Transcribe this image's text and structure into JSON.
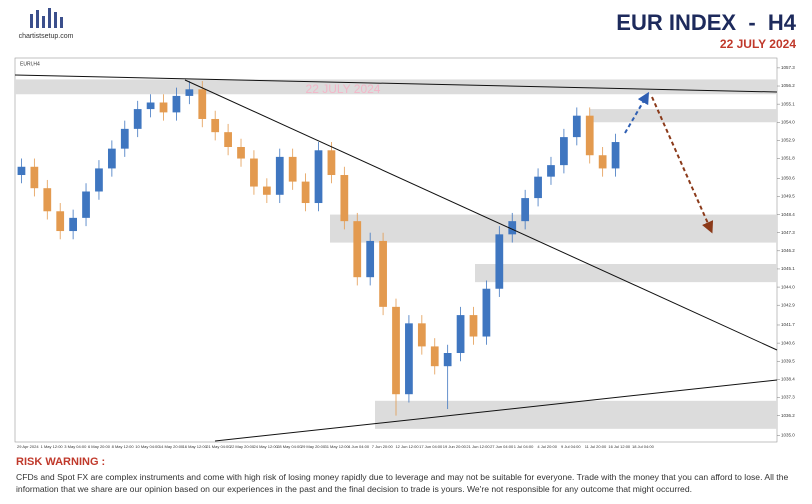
{
  "header": {
    "logo_text": "chartistsetup.com",
    "title": "EUR INDEX  -  H4",
    "date": "22 JULY 2024"
  },
  "chart_data": {
    "type": "candlestick",
    "symbol": "EURI,H4",
    "watermark": "22 JULY 2024",
    "up_color": "#3f76c0",
    "down_color": "#e39a4f",
    "open": [
      1050.8,
      1051.3,
      1050.0,
      1048.6,
      1047.4,
      1048.2,
      1049.8,
      1051.2,
      1052.4,
      1053.6,
      1054.8,
      1055.2,
      1054.6,
      1055.6,
      1056.0,
      1054.2,
      1053.4,
      1052.5,
      1051.8,
      1050.1,
      1049.6,
      1051.9,
      1050.4,
      1049.1,
      1052.3,
      1050.8,
      1048.0,
      1044.6,
      1046.8,
      1042.8,
      1037.5,
      1041.8,
      1040.4,
      1039.2,
      1040.0,
      1042.3,
      1041.0,
      1043.9,
      1047.2,
      1048.0,
      1049.4,
      1050.7,
      1051.4,
      1053.1,
      1054.4,
      1052.0,
      1051.2
    ],
    "high": [
      1051.8,
      1051.8,
      1050.5,
      1049.1,
      1048.7,
      1050.3,
      1051.7,
      1052.9,
      1054.1,
      1055.3,
      1055.7,
      1055.7,
      1056.1,
      1056.5,
      1056.5,
      1054.7,
      1053.9,
      1053.0,
      1052.3,
      1050.6,
      1052.4,
      1052.4,
      1050.9,
      1052.8,
      1052.8,
      1051.3,
      1048.5,
      1047.3,
      1047.3,
      1043.3,
      1042.3,
      1042.3,
      1040.9,
      1040.5,
      1042.8,
      1042.8,
      1044.4,
      1047.7,
      1048.5,
      1049.9,
      1051.2,
      1051.9,
      1053.6,
      1054.9,
      1054.9,
      1052.5,
      1053.3
    ],
    "low": [
      1050.3,
      1049.5,
      1048.1,
      1046.9,
      1046.9,
      1047.7,
      1049.3,
      1050.7,
      1051.9,
      1053.1,
      1054.3,
      1054.1,
      1054.1,
      1055.1,
      1053.7,
      1052.9,
      1052.0,
      1051.3,
      1049.6,
      1049.1,
      1049.1,
      1049.9,
      1048.6,
      1048.6,
      1050.3,
      1047.5,
      1044.1,
      1044.1,
      1042.3,
      1036.2,
      1037.0,
      1039.9,
      1038.7,
      1036.6,
      1039.5,
      1040.5,
      1040.5,
      1043.4,
      1046.7,
      1047.5,
      1048.9,
      1050.2,
      1050.9,
      1052.6,
      1051.5,
      1050.7,
      1050.7
    ],
    "close": [
      1051.3,
      1050.0,
      1048.6,
      1047.4,
      1048.2,
      1049.8,
      1051.2,
      1052.4,
      1053.6,
      1054.8,
      1055.2,
      1054.6,
      1055.6,
      1056.0,
      1054.2,
      1053.4,
      1052.5,
      1051.8,
      1050.1,
      1049.6,
      1051.9,
      1050.4,
      1049.1,
      1052.3,
      1050.8,
      1048.0,
      1044.6,
      1046.8,
      1042.8,
      1037.5,
      1041.8,
      1040.4,
      1039.2,
      1040.0,
      1042.3,
      1041.0,
      1043.9,
      1047.2,
      1048.0,
      1049.4,
      1050.7,
      1051.4,
      1053.1,
      1054.4,
      1052.0,
      1051.2,
      1052.8
    ],
    "zones": [
      {
        "low": 1055.7,
        "high": 1056.6
      },
      {
        "low": 1054.0,
        "high": 1054.8
      },
      {
        "low": 1046.7,
        "high": 1048.4
      },
      {
        "low": 1044.3,
        "high": 1045.4
      },
      {
        "low": 1035.4,
        "high": 1037.1
      }
    ],
    "zone_color": "#dcdcdc",
    "ylim": [
      1034.6,
      1057.9
    ],
    "yticks": [
      1057.3,
      1056.2,
      1055.1,
      {
        "value": 1054.0,
        "label": "1054.0"
      },
      1052.9,
      1051.8,
      1050.6,
      1049.5,
      1048.4,
      1047.3,
      1046.2,
      1045.1,
      {
        "value": 1044.0,
        "label": "1044.0"
      },
      1042.9,
      1041.7,
      1040.6,
      1039.5,
      1038.4,
      1037.3,
      1036.2,
      {
        "value": 1035.0,
        "label": "1035.0"
      }
    ],
    "x_labels": [
      "29 Apr 2024",
      "1 May 12:00",
      "3 May 04:00",
      "6 May 20:00",
      "8 May 12:00",
      "10 May 04:00",
      "14 May 20:00",
      "16 May 12:00",
      "21 May 04:00",
      "22 May 20:00",
      "24 May 12:00",
      "28 May 04:00",
      "29 May 20:00",
      "31 May 12:00",
      "4 Jun 04:00",
      "7 Jun 20:00",
      "12 Jun 12:00",
      "17 Jun 04:00",
      "19 Jun 20:00",
      "21 Jun 12:00",
      "27 Jun 04:00",
      "1 Jul 04:00",
      "4 Jul 20:00",
      "9 Jul 04:00",
      "11 Jul 20:00",
      "16 Jul 12:00",
      "18 Jul 04:00"
    ]
  },
  "risk_warning": {
    "title": "RISK WARNING :",
    "text": "CFDs and Spot FX are complex instruments and come with high risk of losing money rapidly due to leverage and may not be suitable for everyone. Trade with the money that you can afford to lose. All the information that we share are our opinion based on our experiences in the past and the final decision to trade is yours. We're not responsible for any outcome that might occurred."
  }
}
